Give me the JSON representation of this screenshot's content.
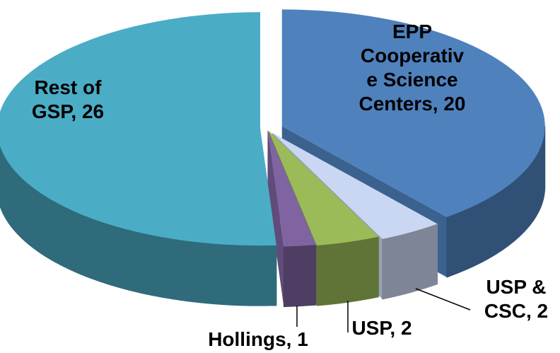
{
  "chart_data": {
    "type": "pie3d",
    "labels": [
      [
        "EPP",
        "Cooperativ",
        "e Science",
        "Centers, 20"
      ],
      [
        "USP &",
        "CSC, 2"
      ],
      [
        "USP, 2"
      ],
      [
        "Hollings, 1"
      ],
      [
        "Rest of",
        "GSP, 26"
      ]
    ],
    "values": [
      20,
      2,
      2,
      1,
      26
    ],
    "colors": [
      "#4f81bd",
      "#c9d7f2",
      "#9bbb59",
      "#8064a2",
      "#4bacc6"
    ]
  }
}
